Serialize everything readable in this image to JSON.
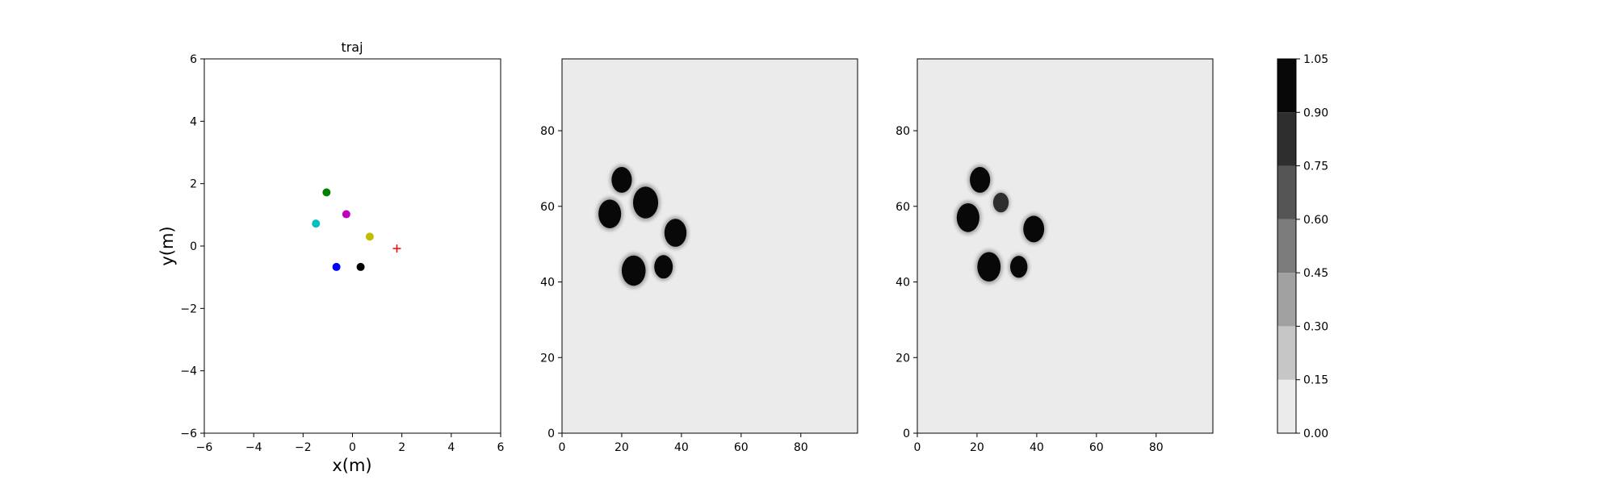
{
  "chart_data": [
    {
      "type": "scatter",
      "title": "traj",
      "xlabel": "x(m)",
      "ylabel": "y(m)",
      "xlim": [
        -6,
        6
      ],
      "ylim": [
        -6,
        6
      ],
      "xticks": [
        -6,
        -4,
        -2,
        0,
        2,
        4,
        6
      ],
      "yticks": [
        -6,
        -4,
        -2,
        0,
        2,
        4,
        6
      ],
      "grid": false,
      "points": [
        {
          "x": -1.05,
          "y": 1.72,
          "color": "#008000",
          "marker": "circle"
        },
        {
          "x": -0.25,
          "y": 1.02,
          "color": "#bf00bf",
          "marker": "circle"
        },
        {
          "x": -1.48,
          "y": 0.72,
          "color": "#00bfbf",
          "marker": "circle"
        },
        {
          "x": 0.7,
          "y": 0.3,
          "color": "#bfbf00",
          "marker": "circle"
        },
        {
          "x": -0.65,
          "y": -0.67,
          "color": "#0000ff",
          "marker": "circle"
        },
        {
          "x": 0.33,
          "y": -0.67,
          "color": "#000000",
          "marker": "circle"
        },
        {
          "x": 1.8,
          "y": -0.08,
          "color": "#ff0000",
          "marker": "plus"
        }
      ]
    },
    {
      "type": "heatmap",
      "title": "",
      "xlim": [
        0,
        99
      ],
      "ylim": [
        0,
        99
      ],
      "xticks": [
        0,
        20,
        40,
        60,
        80
      ],
      "yticks": [
        0,
        20,
        40,
        60,
        80
      ],
      "background_value": 0.05,
      "blobs": [
        {
          "x": 20,
          "y": 67,
          "r": 3.4,
          "value": 1.0
        },
        {
          "x": 16,
          "y": 58,
          "r": 3.8,
          "value": 1.0
        },
        {
          "x": 28,
          "y": 61,
          "r": 4.2,
          "value": 1.0
        },
        {
          "x": 38,
          "y": 53,
          "r": 3.7,
          "value": 1.0
        },
        {
          "x": 24,
          "y": 43,
          "r": 4.0,
          "value": 1.0
        },
        {
          "x": 34,
          "y": 44,
          "r": 3.1,
          "value": 1.0
        }
      ]
    },
    {
      "type": "heatmap",
      "title": "",
      "xlim": [
        0,
        99
      ],
      "ylim": [
        0,
        99
      ],
      "xticks": [
        0,
        20,
        40,
        60,
        80
      ],
      "yticks": [
        0,
        20,
        40,
        60,
        80
      ],
      "background_value": 0.05,
      "blobs": [
        {
          "x": 21,
          "y": 67,
          "r": 3.4,
          "value": 1.0
        },
        {
          "x": 28,
          "y": 61,
          "r": 2.6,
          "value": 0.75
        },
        {
          "x": 17,
          "y": 57,
          "r": 3.8,
          "value": 1.0
        },
        {
          "x": 39,
          "y": 54,
          "r": 3.5,
          "value": 1.0
        },
        {
          "x": 24,
          "y": 44,
          "r": 3.9,
          "value": 1.0
        },
        {
          "x": 34,
          "y": 44,
          "r": 2.9,
          "value": 1.0
        }
      ]
    },
    {
      "type": "colorbar",
      "levels": [
        0.0,
        0.15,
        0.3,
        0.45,
        0.6,
        0.75,
        0.9,
        1.05
      ],
      "tick_labels": [
        "0.00",
        "0.15",
        "0.30",
        "0.45",
        "0.60",
        "0.75",
        "0.90",
        "1.05"
      ],
      "colors": [
        "#ebebeb",
        "#c6c6c6",
        "#a1a1a1",
        "#7b7b7b",
        "#555555",
        "#2e2e2e",
        "#080808"
      ]
    }
  ]
}
